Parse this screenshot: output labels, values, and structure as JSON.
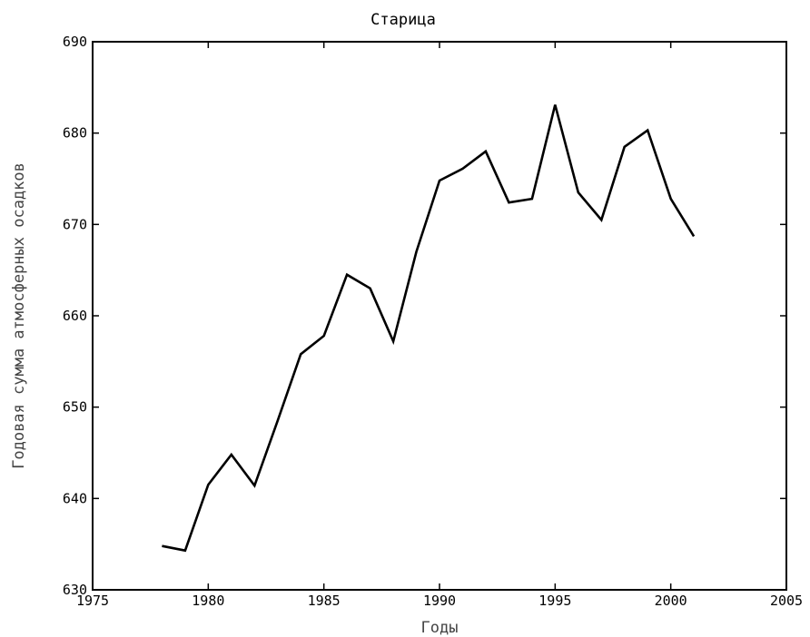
{
  "chart_data": {
    "type": "line",
    "title": "Старица",
    "xlabel": "Годы",
    "ylabel": "Годовая сумма атмосферных осадков",
    "xlim": [
      1975,
      2005
    ],
    "ylim": [
      630,
      690
    ],
    "xticks": [
      1975,
      1980,
      1985,
      1990,
      1995,
      2000,
      2005
    ],
    "yticks": [
      630,
      640,
      650,
      660,
      670,
      680,
      690
    ],
    "grid": false,
    "legend": "none",
    "series": [
      {
        "x": [
          1978,
          1979,
          1980,
          1981,
          1982,
          1983,
          1984,
          1985,
          1986,
          1987,
          1988,
          1989,
          1990,
          1991,
          1992,
          1993,
          1994,
          1995,
          1996,
          1997,
          1998,
          1999,
          2000,
          2001
        ],
        "values": [
          634.8,
          634.3,
          641.5,
          644.8,
          641.4,
          648.5,
          655.8,
          657.8,
          664.5,
          663.0,
          657.2,
          667.0,
          674.8,
          676.1,
          678.0,
          672.4,
          672.8,
          683.1,
          673.5,
          670.5,
          678.5,
          680.3,
          672.8,
          668.7
        ],
        "color": "#000000"
      }
    ]
  }
}
